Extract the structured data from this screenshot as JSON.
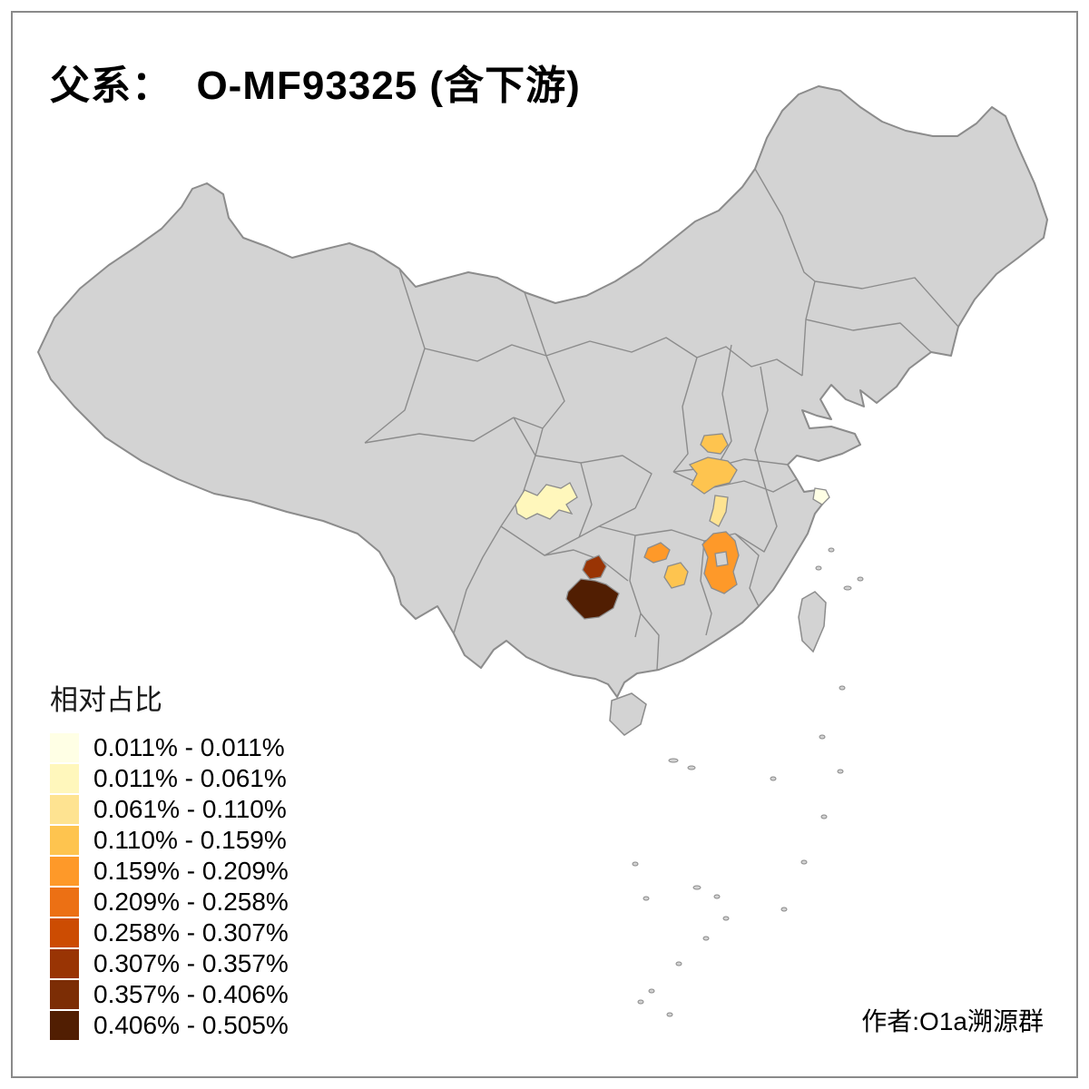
{
  "page": {
    "title": "父系：  O-MF93325 (含下游)",
    "credit": "作者:O1a溯源群"
  },
  "legend": {
    "title": "相对占比",
    "items": [
      {
        "label": "0.011% - 0.011%",
        "color": "#FFFFE5"
      },
      {
        "label": "0.011% - 0.061%",
        "color": "#FFF7BC"
      },
      {
        "label": "0.061% - 0.110%",
        "color": "#FEE391"
      },
      {
        "label": "0.110% - 0.159%",
        "color": "#FEC44F"
      },
      {
        "label": "0.159% - 0.209%",
        "color": "#FE9929"
      },
      {
        "label": "0.209% - 0.258%",
        "color": "#EC7014"
      },
      {
        "label": "0.258% - 0.307%",
        "color": "#CC4C02"
      },
      {
        "label": "0.307% - 0.357%",
        "color": "#993404"
      },
      {
        "label": "0.357% - 0.406%",
        "color": "#7C2D05"
      },
      {
        "label": "0.406% - 0.505%",
        "color": "#511E02"
      }
    ]
  },
  "map": {
    "base_fill": "#D3D3D3",
    "border_color": "#8C8C8C",
    "regions": [
      {
        "name": "sichuan-basin",
        "color": "#FFF7BC"
      },
      {
        "name": "shanghai",
        "color": "#FFFFE5"
      },
      {
        "name": "henan-central",
        "color": "#FEC44F"
      },
      {
        "name": "henan-south",
        "color": "#FEC44F"
      },
      {
        "name": "hubei-central",
        "color": "#FEE391"
      },
      {
        "name": "hunan-northwest",
        "color": "#FE9929"
      },
      {
        "name": "hunan-central",
        "color": "#FEC44F"
      },
      {
        "name": "jiangxi-north",
        "color": "#FE9929"
      },
      {
        "name": "guizhou-central",
        "color": "#993404"
      },
      {
        "name": "guizhou-southwest",
        "color": "#511E02"
      }
    ]
  },
  "chart_data": {
    "type": "choropleth",
    "title": "父系：  O-MF93325 (含下游)",
    "legend_title": "相对占比",
    "classes": [
      "0.011% - 0.011%",
      "0.011% - 0.061%",
      "0.061% - 0.110%",
      "0.110% - 0.159%",
      "0.159% - 0.209%",
      "0.209% - 0.258%",
      "0.258% - 0.307%",
      "0.307% - 0.357%",
      "0.357% - 0.406%",
      "0.406% - 0.505%"
    ],
    "regions": [
      {
        "name": "sichuan-basin",
        "class": "0.011% - 0.061%"
      },
      {
        "name": "shanghai",
        "class": "0.011% - 0.011%"
      },
      {
        "name": "henan-central",
        "class": "0.110% - 0.159%"
      },
      {
        "name": "henan-south",
        "class": "0.110% - 0.159%"
      },
      {
        "name": "hubei-central",
        "class": "0.061% - 0.110%"
      },
      {
        "name": "hunan-northwest",
        "class": "0.159% - 0.209%"
      },
      {
        "name": "hunan-central",
        "class": "0.110% - 0.159%"
      },
      {
        "name": "jiangxi-north",
        "class": "0.159% - 0.209%"
      },
      {
        "name": "guizhou-central",
        "class": "0.307% - 0.357%"
      },
      {
        "name": "guizhou-southwest",
        "class": "0.406% - 0.505%"
      }
    ]
  }
}
